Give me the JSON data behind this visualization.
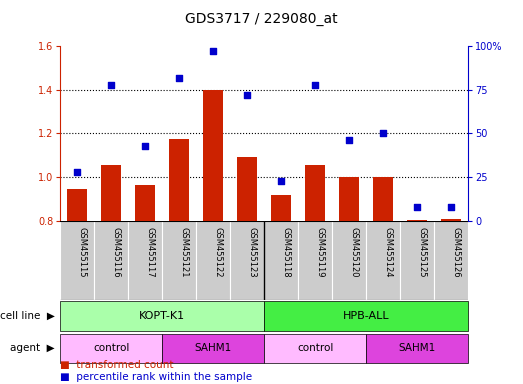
{
  "title": "GDS3717 / 229080_at",
  "samples": [
    "GSM455115",
    "GSM455116",
    "GSM455117",
    "GSM455121",
    "GSM455122",
    "GSM455123",
    "GSM455118",
    "GSM455119",
    "GSM455120",
    "GSM455124",
    "GSM455125",
    "GSM455126"
  ],
  "bar_values": [
    0.945,
    1.055,
    0.965,
    1.175,
    1.4,
    1.09,
    0.92,
    1.055,
    1.0,
    1.0,
    0.805,
    0.81
  ],
  "dot_values": [
    28,
    78,
    43,
    82,
    97,
    72,
    23,
    78,
    46,
    50,
    8,
    8
  ],
  "bar_color": "#cc2200",
  "dot_color": "#0000cc",
  "ylim_left": [
    0.8,
    1.6
  ],
  "ylim_right": [
    0,
    100
  ],
  "yticks_left": [
    0.8,
    1.0,
    1.2,
    1.4,
    1.6
  ],
  "ytick_labels_left": [
    "0.8",
    "1.0",
    "1.2",
    "1.4",
    "1.6"
  ],
  "yticks_right": [
    0,
    25,
    50,
    75,
    100
  ],
  "ytick_labels_right": [
    "0",
    "25",
    "50",
    "75",
    "100%"
  ],
  "cell_line_labels": [
    {
      "label": "KOPT-K1",
      "start": 0,
      "end": 6,
      "color": "#aaffaa"
    },
    {
      "label": "HPB-ALL",
      "start": 6,
      "end": 12,
      "color": "#44ee44"
    }
  ],
  "agent_labels": [
    {
      "label": "control",
      "start": 0,
      "end": 3,
      "color": "#ffbbff"
    },
    {
      "label": "SAHM1",
      "start": 3,
      "end": 6,
      "color": "#dd44dd"
    },
    {
      "label": "control",
      "start": 6,
      "end": 9,
      "color": "#ffbbff"
    },
    {
      "label": "SAHM1",
      "start": 9,
      "end": 12,
      "color": "#dd44dd"
    }
  ],
  "legend_bar_label": "transformed count",
  "legend_dot_label": "percentile rank within the sample",
  "cell_line_row_label": "cell line",
  "agent_row_label": "agent",
  "bg_color": "#ffffff",
  "tick_label_area_color": "#cccccc",
  "hlines": [
    1.0,
    1.2,
    1.4
  ],
  "bar_width": 0.6
}
